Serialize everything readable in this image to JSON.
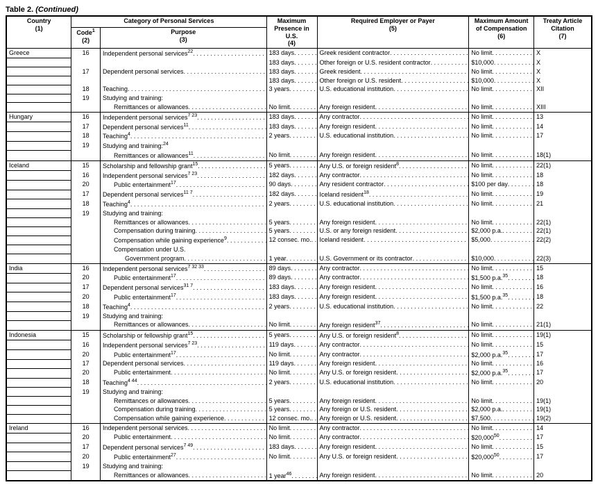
{
  "title_prefix": "Table 2.",
  "title_suffix": "(Continued)",
  "headers": {
    "country": "Country",
    "country_num": "(1)",
    "category": "Category of Personal Services",
    "code": "Code",
    "code_sup": "1",
    "code_num": "(2)",
    "purpose": "Purpose",
    "purpose_num": "(3)",
    "max_presence": "Maximum Presence in U.S.",
    "max_presence_num": "(4)",
    "employer": "Required Employer or Payer",
    "employer_num": "(5)",
    "max_comp": "Maximum Amount of Compensation",
    "max_comp_num": "(6)",
    "citation": "Treaty Article Citation",
    "citation_num": "(7)"
  },
  "rows": [
    {
      "group": "Greece",
      "code": "16",
      "purpose": "Independent personal services",
      "sup": "22",
      "mp": "183 days",
      "emp": "Greek resident contractor",
      "comp": "No limit",
      "cit": "X"
    },
    {
      "group": "",
      "code": "",
      "purpose": "",
      "mp": "183 days",
      "emp": "Other foreign or U.S. resident contractor",
      "comp": "$10,000",
      "cit": "X"
    },
    {
      "group": "",
      "code": "17",
      "purpose": "Dependent personal services",
      "mp": "183 days",
      "emp": "Greek resident",
      "comp": "No limit",
      "cit": "X"
    },
    {
      "group": "",
      "code": "",
      "purpose": "",
      "mp": "183 days",
      "emp": "Other foreign or U.S. resident",
      "comp": "$10,000",
      "cit": "X"
    },
    {
      "group": "",
      "code": "18",
      "purpose": "Teaching",
      "mp": "3 years",
      "emp": "U.S. educational institution",
      "comp": "No limit",
      "cit": "XII"
    },
    {
      "group": "",
      "code": "19",
      "purpose": "Studying and training:",
      "mp": "",
      "emp": "",
      "comp": "",
      "cit": ""
    },
    {
      "group": "",
      "code": "",
      "purpose": "Remittances or allowances",
      "indent": true,
      "mp": "No limit",
      "emp": "Any foreign resident",
      "comp": "No limit",
      "cit": "XIII"
    },
    {
      "group": "Hungary",
      "code": "16",
      "purpose": "Independent personal services",
      "sup": "7 23",
      "mp": "183 days",
      "emp": "Any contractor",
      "comp": "No limit",
      "cit": "13"
    },
    {
      "group": "",
      "code": "17",
      "purpose": "Dependent personal services",
      "sup": "11",
      "mp": "183 days",
      "emp": "Any foreign resident",
      "comp": "No limit",
      "cit": "14"
    },
    {
      "group": "",
      "code": "18",
      "purpose": "Teaching",
      "sup": "4",
      "mp": "2 years",
      "emp": "U.S. educational institution",
      "comp": "No limit",
      "cit": "17"
    },
    {
      "group": "",
      "code": "19",
      "purpose": "Studying and training:",
      "sup": "24",
      "mp": "",
      "emp": "",
      "comp": "",
      "cit": ""
    },
    {
      "group": "",
      "code": "",
      "purpose": "Remittances or allowances",
      "sup": "11",
      "indent": true,
      "mp": "No limit",
      "emp": "Any foreign resident",
      "comp": "No limit",
      "cit": "18(1)"
    },
    {
      "group": "Iceland",
      "code": "15",
      "purpose": "Scholarship and fellowship grant",
      "sup": "15",
      "mp": "5 years",
      "emp": "Any U.S. or foreign resident",
      "empSup": "8",
      "comp": "No limit",
      "cit": "22(1)"
    },
    {
      "group": "",
      "code": "16",
      "purpose": "Independent personal services",
      "sup": "7 23",
      "mp": "182 days",
      "emp": "Any contractor",
      "comp": "No limit",
      "cit": "18"
    },
    {
      "group": "",
      "code": "20",
      "purpose": "Public entertainment",
      "sup": "17",
      "indent": true,
      "mp": "90 days",
      "emp": "Any resident contractor",
      "comp": "$100 per day",
      "cit": "18"
    },
    {
      "group": "",
      "code": "17",
      "purpose": "Dependent personal services",
      "sup": "11 7",
      "mp": "182 days",
      "emp": "Iceland resident",
      "empSup": "18",
      "comp": "No limit",
      "cit": "19"
    },
    {
      "group": "",
      "code": "18",
      "purpose": "Teaching",
      "sup": "4",
      "mp": "2 years",
      "emp": "U.S. educational institution",
      "comp": "No limit",
      "cit": "21"
    },
    {
      "group": "",
      "code": "19",
      "purpose": "Studying and training:",
      "mp": "",
      "emp": "",
      "comp": "",
      "cit": ""
    },
    {
      "group": "",
      "code": "",
      "purpose": "Remittances or allowances",
      "indent": true,
      "mp": "5 years",
      "emp": "Any foreign resident",
      "comp": "No limit",
      "cit": "22(1)"
    },
    {
      "group": "",
      "code": "",
      "purpose": "Compensation during training",
      "indent": true,
      "mp": "5 years",
      "emp": "U.S. or any foreign resident",
      "comp": "$2,000 p.a.",
      "cit": "22(1)"
    },
    {
      "group": "",
      "code": "",
      "purpose": "Compensation while gaining experience",
      "sup": "9",
      "indent": true,
      "mp": "12 consec. mo.",
      "emp": "Iceland resident",
      "comp": "$5,000",
      "cit": "22(2)"
    },
    {
      "group": "",
      "code": "",
      "purpose": "Compensation under U.S.",
      "indent": true,
      "mp": "",
      "emp": "",
      "comp": "",
      "cit": ""
    },
    {
      "group": "",
      "code": "",
      "purpose": "Government program",
      "indent2": true,
      "mp": "1 year",
      "emp": "U.S. Government or its contractor",
      "comp": "$10,000",
      "cit": "22(3)"
    },
    {
      "group": "India",
      "code": "16",
      "purpose": "Independent personal services",
      "sup": "7 32 33",
      "mp": "89 days",
      "emp": "Any contractor",
      "comp": "No limit",
      "cit": "15"
    },
    {
      "group": "",
      "code": "20",
      "purpose": "Public entertainment",
      "sup": "17",
      "indent": true,
      "mp": "89 days",
      "emp": "Any contractor",
      "comp": "$1,500 p.a.",
      "compSup": "35",
      "cit": "18"
    },
    {
      "group": "",
      "code": "17",
      "purpose": "Dependent personal services",
      "sup": "31 7",
      "mp": "183 days",
      "emp": "Any foreign resident",
      "comp": "No limit",
      "cit": "16"
    },
    {
      "group": "",
      "code": "20",
      "purpose": "Public entertainment",
      "sup": "17",
      "indent": true,
      "mp": "183 days",
      "emp": "Any foreign resident",
      "comp": "$1,500 p.a.",
      "compSup": "35",
      "cit": "18"
    },
    {
      "group": "",
      "code": "18",
      "purpose": "Teaching",
      "sup": "4",
      "mp": "2 years",
      "emp": "U.S. educational institution",
      "comp": "No limit",
      "cit": "22"
    },
    {
      "group": "",
      "code": "19",
      "purpose": "Studying and training:",
      "mp": "",
      "emp": "",
      "comp": "",
      "cit": ""
    },
    {
      "group": "",
      "code": "",
      "purpose": "Remittances or allowances",
      "indent": true,
      "mp": "No limit",
      "emp": "Any foreign resident",
      "empSup": "37",
      "comp": "No limit",
      "cit": "21(1)"
    },
    {
      "group": "Indonesia",
      "code": "15",
      "purpose": "Scholarship or fellowship grant",
      "sup": "15",
      "mp": "5 years",
      "emp": "Any U.S. or foreign resident",
      "empSup": "8",
      "comp": "No limit",
      "cit": "19(1)"
    },
    {
      "group": "",
      "code": "16",
      "purpose": "Independent personal services",
      "sup": "7 23",
      "mp": "119 days",
      "emp": "Any contractor",
      "comp": "No limit",
      "cit": "15"
    },
    {
      "group": "",
      "code": "20",
      "purpose": "Public entertainment",
      "sup": "17",
      "indent": true,
      "mp": "No limit",
      "emp": "Any contractor",
      "comp": "$2,000 p.a.",
      "compSup": "35",
      "cit": "17"
    },
    {
      "group": "",
      "code": "17",
      "purpose": "Dependent personal services",
      "mp": "119 days",
      "emp": "Any foreign resident",
      "comp": "No limit",
      "cit": "16"
    },
    {
      "group": "",
      "code": "20",
      "purpose": "Public entertainment",
      "indent": true,
      "mp": "No limit",
      "emp": "Any U.S. or foreign resident",
      "comp": "$2,000 p.a.",
      "compSup": "35",
      "cit": "17"
    },
    {
      "group": "",
      "code": "18",
      "purpose": "Teaching",
      "sup": "4 44",
      "mp": "2 years",
      "emp": "U.S. educational institution",
      "comp": "No limit",
      "cit": "20"
    },
    {
      "group": "",
      "code": "19",
      "purpose": "Studying and training:",
      "mp": "",
      "emp": "",
      "comp": "",
      "cit": ""
    },
    {
      "group": "",
      "code": "",
      "purpose": "Remittances or allowances",
      "indent": true,
      "mp": "5 years",
      "emp": "Any foreign resident",
      "comp": "No limit",
      "cit": "19(1)"
    },
    {
      "group": "",
      "code": "",
      "purpose": "Compensation during training",
      "indent": true,
      "mp": "5 years",
      "emp": "Any foreign or U.S. resident",
      "comp": "$2,000 p.a.",
      "cit": "19(1)"
    },
    {
      "group": "",
      "code": "",
      "purpose": "Compensation while gaining experience",
      "indent": true,
      "mp": "12 consec. mo.",
      "emp": "Any foreign or U.S. resident",
      "comp": "$7,500",
      "cit": "19(2)"
    },
    {
      "group": "Ireland",
      "code": "16",
      "purpose": "Independent personal services",
      "mp": "No limit",
      "emp": "Any contractor",
      "comp": "No limit",
      "cit": "14"
    },
    {
      "group": "",
      "code": "20",
      "purpose": "Public entertainment",
      "indent": true,
      "mp": "No limit",
      "emp": "Any contractor",
      "comp": "$20,000",
      "compSup": "50",
      "cit": "17"
    },
    {
      "group": "",
      "code": "17",
      "purpose": "Dependent personal services",
      "sup": "7 49",
      "mp": "183 days",
      "emp": "Any foreign resident",
      "comp": "No limit",
      "cit": "15"
    },
    {
      "group": "",
      "code": "20",
      "purpose": "Public entertainment",
      "sup": "27",
      "indent": true,
      "mp": "No limit",
      "emp": "Any U.S. or foreign resident",
      "comp": "$20,000",
      "compSup": "50",
      "cit": "17"
    },
    {
      "group": "",
      "code": "19",
      "purpose": "Studying and training:",
      "mp": "",
      "emp": "",
      "comp": "",
      "cit": ""
    },
    {
      "group": "",
      "code": "",
      "purpose": "Remittances or allowances",
      "indent": true,
      "mp": "1 year",
      "mpSup": "46",
      "emp": "Any foreign resident",
      "comp": "No limit",
      "cit": "20"
    }
  ]
}
